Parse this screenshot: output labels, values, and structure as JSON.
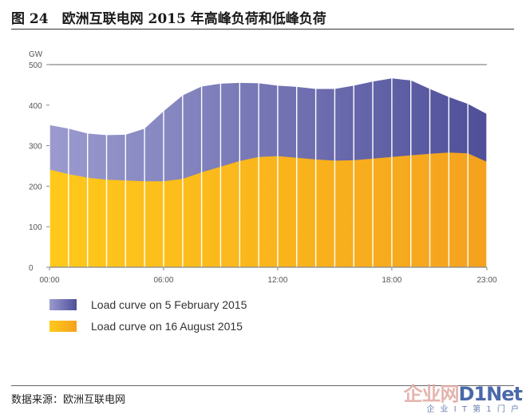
{
  "figure": {
    "title": "图 24　欧洲互联电网 2015 年高峰负荷和低峰负荷",
    "source": "数据来源：欧洲互联电网"
  },
  "watermark": {
    "logo_cn": "企业网",
    "logo_en": "D1Net",
    "tagline": "企 业 I T 第 1 门 户"
  },
  "colors": {
    "winter_left": "#9b9bcf",
    "winter_right": "#4f4f9a",
    "summer_left": "#ffc91a",
    "summer_right": "#f4a21e",
    "grid": "#ffffff",
    "axis": "#888888"
  },
  "chart_data": {
    "type": "area",
    "ylabel": "GW",
    "ylim": [
      0,
      500
    ],
    "yticks": [
      0,
      100,
      200,
      300,
      400,
      500
    ],
    "xlim": [
      0,
      23
    ],
    "xticks": [
      {
        "value": 0,
        "label": "00:00"
      },
      {
        "value": 6,
        "label": "06:00"
      },
      {
        "value": 12,
        "label": "12:00"
      },
      {
        "value": 18,
        "label": "18:00"
      },
      {
        "value": 23,
        "label": "23:00"
      }
    ],
    "x": [
      0,
      1,
      2,
      3,
      4,
      5,
      6,
      7,
      8,
      9,
      10,
      11,
      12,
      13,
      14,
      15,
      16,
      17,
      18,
      19,
      20,
      21,
      22,
      23
    ],
    "grid": "vertical",
    "legend_position": "bottom-left",
    "series": [
      {
        "name": "Load curve on 5 February 2015",
        "values": [
          351,
          342,
          330,
          326,
          327,
          342,
          385,
          424,
          446,
          453,
          455,
          454,
          448,
          445,
          440,
          440,
          448,
          458,
          466,
          461,
          440,
          420,
          403,
          378
        ]
      },
      {
        "name": "Load curve on 16 August 2015",
        "values": [
          241,
          230,
          221,
          216,
          214,
          212,
          212,
          218,
          234,
          248,
          262,
          272,
          274,
          270,
          266,
          263,
          264,
          268,
          272,
          276,
          280,
          283,
          281,
          260
        ]
      }
    ]
  }
}
